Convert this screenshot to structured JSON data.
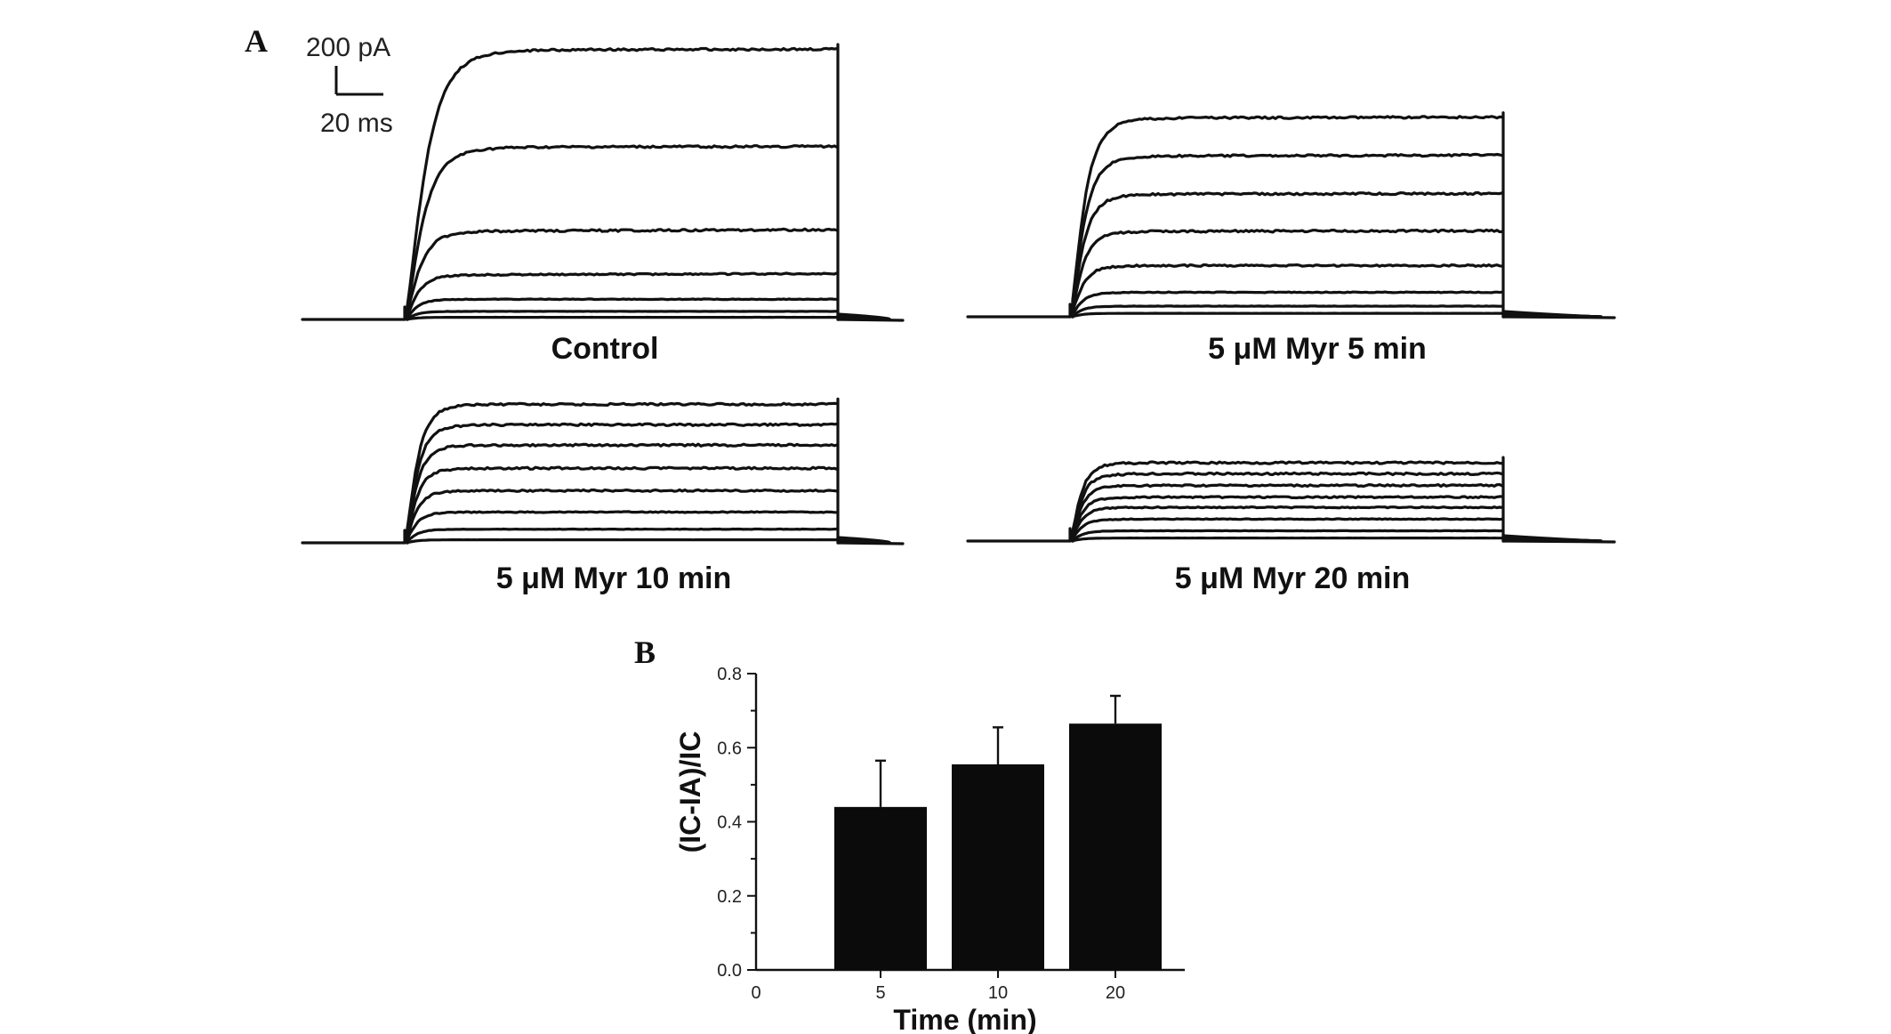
{
  "panel_a": {
    "label": "A",
    "scale_bar": {
      "current": "200 pA",
      "time": "20 ms"
    },
    "traces": [
      {
        "id": "control",
        "label": "Control",
        "peaks": [
          0.0,
          0.008,
          0.03,
          0.075,
          0.165,
          0.327,
          0.638,
          1.0
        ],
        "tau": [
          3,
          3,
          3,
          3.2,
          3.6,
          4.2,
          5.2,
          6.0
        ],
        "drift": [
          0,
          0,
          0,
          0,
          0.005,
          0.006,
          0.004,
          0.002
        ]
      },
      {
        "id": "myr5",
        "label": "5 μM Myr 5 min",
        "peaks": [
          0.0,
          0.014,
          0.043,
          0.099,
          0.207,
          0.345,
          0.495,
          0.65,
          0.803
        ],
        "tau": [
          3,
          3,
          3,
          3.1,
          3.3,
          3.5,
          3.7,
          3.9,
          4.1
        ],
        "drift": [
          0,
          0,
          0,
          0,
          0,
          0.003,
          0.004,
          0.004,
          0.005
        ]
      },
      {
        "id": "myr10",
        "label": "5 μM Myr 10 min",
        "peaks": [
          0.0,
          0.012,
          0.054,
          0.122,
          0.207,
          0.296,
          0.388,
          0.469,
          0.55
        ],
        "tau": [
          3,
          3,
          3,
          3,
          3.1,
          3.2,
          3.3,
          3.4,
          3.5
        ],
        "drift": [
          0,
          0,
          0,
          0,
          0,
          0,
          0,
          0,
          0
        ]
      },
      {
        "id": "myr20",
        "label": "5 μM Myr 20 min",
        "peaks": [
          0.0,
          0.012,
          0.041,
          0.088,
          0.135,
          0.176,
          0.223,
          0.27,
          0.314
        ],
        "tau": [
          3,
          3,
          3,
          3,
          3,
          3,
          3,
          3,
          3
        ],
        "drift": [
          0,
          0,
          0,
          0,
          0,
          0,
          0,
          0,
          0
        ]
      }
    ]
  },
  "panel_b": {
    "label": "B",
    "x_tick_zero": "0",
    "chart_data": {
      "type": "bar",
      "categories": [
        "5",
        "10",
        "20"
      ],
      "values": [
        0.44,
        0.555,
        0.665
      ],
      "errors": [
        0.125,
        0.1,
        0.075
      ],
      "xlabel": "Time (min)",
      "ylabel": "(IC-IA)/IC",
      "ylim": [
        0,
        0.8
      ],
      "yticks": [
        "0.0",
        "0.2",
        "0.4",
        "0.6",
        "0.8"
      ],
      "grid": false,
      "bar_color": "#0b0b0b"
    }
  }
}
